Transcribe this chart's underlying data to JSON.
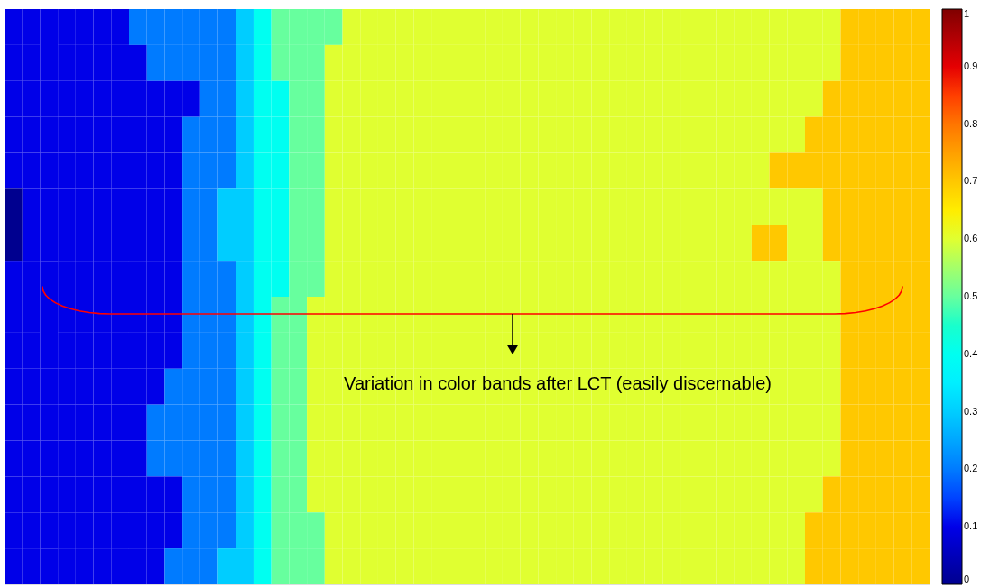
{
  "chart_data": {
    "type": "heatmap",
    "categories": [
      null,
      null,
      null,
      null,
      null,
      null,
      null,
      null,
      null,
      null,
      null,
      null,
      null,
      null,
      null,
      null,
      null,
      null,
      null,
      null,
      null,
      null,
      null,
      null,
      null,
      null,
      null,
      null,
      null,
      null,
      null,
      null,
      null,
      null,
      null,
      null,
      null,
      null,
      null,
      null,
      null,
      null,
      null,
      null,
      null,
      null,
      null,
      null,
      null,
      null,
      null,
      null
    ],
    "y_categories": [
      null,
      null,
      null,
      null,
      null,
      null,
      null,
      null,
      null,
      null,
      null,
      null,
      null,
      null,
      null,
      null
    ],
    "cells": [
      [
        0.1,
        0.1,
        0.1,
        0.1,
        0.1,
        0.1,
        0.1,
        0.2,
        0.2,
        0.2,
        0.2,
        0.2,
        0.2,
        0.3,
        0.4,
        0.5,
        0.5,
        0.5,
        0.5,
        0.6,
        0.6,
        0.6,
        0.6,
        0.6,
        0.6,
        0.6,
        0.6,
        0.6,
        0.6,
        0.6,
        0.6,
        0.6,
        0.6,
        0.6,
        0.6,
        0.6,
        0.6,
        0.6,
        0.6,
        0.6,
        0.6,
        0.6,
        0.6,
        0.6,
        0.6,
        0.6,
        0.6,
        0.7,
        0.7,
        0.7,
        0.7,
        0.7
      ],
      [
        0.1,
        0.1,
        0.1,
        0.1,
        0.1,
        0.1,
        0.1,
        0.1,
        0.2,
        0.2,
        0.2,
        0.2,
        0.2,
        0.3,
        0.4,
        0.5,
        0.5,
        0.5,
        0.6,
        0.6,
        0.6,
        0.6,
        0.6,
        0.6,
        0.6,
        0.6,
        0.6,
        0.6,
        0.6,
        0.6,
        0.6,
        0.6,
        0.6,
        0.6,
        0.6,
        0.6,
        0.6,
        0.6,
        0.6,
        0.6,
        0.6,
        0.6,
        0.6,
        0.6,
        0.6,
        0.6,
        0.6,
        0.7,
        0.7,
        0.7,
        0.7,
        0.7
      ],
      [
        0.1,
        0.1,
        0.1,
        0.1,
        0.1,
        0.1,
        0.1,
        0.1,
        0.1,
        0.1,
        0.1,
        0.2,
        0.2,
        0.3,
        0.4,
        0.4,
        0.5,
        0.5,
        0.6,
        0.6,
        0.6,
        0.6,
        0.6,
        0.6,
        0.6,
        0.6,
        0.6,
        0.6,
        0.6,
        0.6,
        0.6,
        0.6,
        0.6,
        0.6,
        0.6,
        0.6,
        0.6,
        0.6,
        0.6,
        0.6,
        0.6,
        0.6,
        0.6,
        0.6,
        0.6,
        0.6,
        0.7,
        0.7,
        0.7,
        0.7,
        0.7,
        0.7
      ],
      [
        0.1,
        0.1,
        0.1,
        0.1,
        0.1,
        0.1,
        0.1,
        0.1,
        0.1,
        0.1,
        0.2,
        0.2,
        0.2,
        0.3,
        0.4,
        0.4,
        0.5,
        0.5,
        0.6,
        0.6,
        0.6,
        0.6,
        0.6,
        0.6,
        0.6,
        0.6,
        0.6,
        0.6,
        0.6,
        0.6,
        0.6,
        0.6,
        0.6,
        0.6,
        0.6,
        0.6,
        0.6,
        0.6,
        0.6,
        0.6,
        0.6,
        0.6,
        0.6,
        0.6,
        0.6,
        0.7,
        0.7,
        0.7,
        0.7,
        0.7,
        0.7,
        0.7
      ],
      [
        0.1,
        0.1,
        0.1,
        0.1,
        0.1,
        0.1,
        0.1,
        0.1,
        0.1,
        0.1,
        0.2,
        0.2,
        0.2,
        0.3,
        0.4,
        0.4,
        0.5,
        0.5,
        0.6,
        0.6,
        0.6,
        0.6,
        0.6,
        0.6,
        0.6,
        0.6,
        0.6,
        0.6,
        0.6,
        0.6,
        0.6,
        0.6,
        0.6,
        0.6,
        0.6,
        0.6,
        0.6,
        0.6,
        0.6,
        0.6,
        0.6,
        0.6,
        0.6,
        0.7,
        0.7,
        0.7,
        0.7,
        0.7,
        0.7,
        0.7,
        0.7,
        0.7
      ],
      [
        0,
        0.1,
        0.1,
        0.1,
        0.1,
        0.1,
        0.1,
        0.1,
        0.1,
        0.1,
        0.2,
        0.2,
        0.3,
        0.3,
        0.4,
        0.4,
        0.5,
        0.5,
        0.6,
        0.6,
        0.6,
        0.6,
        0.6,
        0.6,
        0.6,
        0.6,
        0.6,
        0.6,
        0.6,
        0.6,
        0.6,
        0.6,
        0.6,
        0.6,
        0.6,
        0.6,
        0.6,
        0.6,
        0.6,
        0.6,
        0.6,
        0.6,
        0.6,
        0.6,
        0.6,
        0.6,
        0.7,
        0.7,
        0.7,
        0.7,
        0.7,
        0.7
      ],
      [
        0,
        0.1,
        0.1,
        0.1,
        0.1,
        0.1,
        0.1,
        0.1,
        0.1,
        0.1,
        0.2,
        0.2,
        0.3,
        0.3,
        0.4,
        0.4,
        0.5,
        0.5,
        0.6,
        0.6,
        0.6,
        0.6,
        0.6,
        0.6,
        0.6,
        0.6,
        0.6,
        0.6,
        0.6,
        0.6,
        0.6,
        0.6,
        0.6,
        0.6,
        0.6,
        0.6,
        0.6,
        0.6,
        0.6,
        0.6,
        0.6,
        0.6,
        0.7,
        0.7,
        0.6,
        0.6,
        0.7,
        0.7,
        0.7,
        0.7,
        0.7,
        0.7
      ],
      [
        0.1,
        0.1,
        0.1,
        0.1,
        0.1,
        0.1,
        0.1,
        0.1,
        0.1,
        0.1,
        0.2,
        0.2,
        0.2,
        0.3,
        0.4,
        0.4,
        0.5,
        0.5,
        0.6,
        0.6,
        0.6,
        0.6,
        0.6,
        0.6,
        0.6,
        0.6,
        0.6,
        0.6,
        0.6,
        0.6,
        0.6,
        0.6,
        0.6,
        0.6,
        0.6,
        0.6,
        0.6,
        0.6,
        0.6,
        0.6,
        0.6,
        0.6,
        0.6,
        0.6,
        0.6,
        0.6,
        0.6,
        0.7,
        0.7,
        0.7,
        0.7,
        0.7
      ],
      [
        0.1,
        0.1,
        0.1,
        0.1,
        0.1,
        0.1,
        0.1,
        0.1,
        0.1,
        0.1,
        0.2,
        0.2,
        0.2,
        0.3,
        0.4,
        0.5,
        0.5,
        0.6,
        0.6,
        0.6,
        0.6,
        0.6,
        0.6,
        0.6,
        0.6,
        0.6,
        0.6,
        0.6,
        0.6,
        0.6,
        0.6,
        0.6,
        0.6,
        0.6,
        0.6,
        0.6,
        0.6,
        0.6,
        0.6,
        0.6,
        0.6,
        0.6,
        0.6,
        0.6,
        0.6,
        0.6,
        0.6,
        0.7,
        0.7,
        0.7,
        0.7,
        0.7
      ],
      [
        0.1,
        0.1,
        0.1,
        0.1,
        0.1,
        0.1,
        0.1,
        0.1,
        0.1,
        0.1,
        0.2,
        0.2,
        0.2,
        0.3,
        0.4,
        0.5,
        0.5,
        0.6,
        0.6,
        0.6,
        0.6,
        0.6,
        0.6,
        0.6,
        0.6,
        0.6,
        0.6,
        0.6,
        0.6,
        0.6,
        0.6,
        0.6,
        0.6,
        0.6,
        0.6,
        0.6,
        0.6,
        0.6,
        0.6,
        0.6,
        0.6,
        0.6,
        0.6,
        0.6,
        0.6,
        0.6,
        0.6,
        0.7,
        0.7,
        0.7,
        0.7,
        0.7
      ],
      [
        0.1,
        0.1,
        0.1,
        0.1,
        0.1,
        0.1,
        0.1,
        0.1,
        0.1,
        0.2,
        0.2,
        0.2,
        0.2,
        0.3,
        0.4,
        0.5,
        0.5,
        0.6,
        0.6,
        0.6,
        0.6,
        0.6,
        0.6,
        0.6,
        0.6,
        0.6,
        0.6,
        0.6,
        0.6,
        0.6,
        0.6,
        0.6,
        0.6,
        0.6,
        0.6,
        0.6,
        0.6,
        0.6,
        0.6,
        0.6,
        0.6,
        0.6,
        0.6,
        0.6,
        0.6,
        0.6,
        0.6,
        0.7,
        0.7,
        0.7,
        0.7,
        0.7
      ],
      [
        0.1,
        0.1,
        0.1,
        0.1,
        0.1,
        0.1,
        0.1,
        0.1,
        0.2,
        0.2,
        0.2,
        0.2,
        0.2,
        0.3,
        0.4,
        0.5,
        0.5,
        0.6,
        0.6,
        0.6,
        0.6,
        0.6,
        0.6,
        0.6,
        0.6,
        0.6,
        0.6,
        0.6,
        0.6,
        0.6,
        0.6,
        0.6,
        0.6,
        0.6,
        0.6,
        0.6,
        0.6,
        0.6,
        0.6,
        0.6,
        0.6,
        0.6,
        0.6,
        0.6,
        0.6,
        0.6,
        0.6,
        0.7,
        0.7,
        0.7,
        0.7,
        0.7
      ],
      [
        0.1,
        0.1,
        0.1,
        0.1,
        0.1,
        0.1,
        0.1,
        0.1,
        0.2,
        0.2,
        0.2,
        0.2,
        0.2,
        0.3,
        0.4,
        0.5,
        0.5,
        0.6,
        0.6,
        0.6,
        0.6,
        0.6,
        0.6,
        0.6,
        0.6,
        0.6,
        0.6,
        0.6,
        0.6,
        0.6,
        0.6,
        0.6,
        0.6,
        0.6,
        0.6,
        0.6,
        0.6,
        0.6,
        0.6,
        0.6,
        0.6,
        0.6,
        0.6,
        0.6,
        0.6,
        0.6,
        0.6,
        0.7,
        0.7,
        0.7,
        0.7,
        0.7
      ],
      [
        0.1,
        0.1,
        0.1,
        0.1,
        0.1,
        0.1,
        0.1,
        0.1,
        0.1,
        0.1,
        0.2,
        0.2,
        0.2,
        0.3,
        0.4,
        0.5,
        0.5,
        0.6,
        0.6,
        0.6,
        0.6,
        0.6,
        0.6,
        0.6,
        0.6,
        0.6,
        0.6,
        0.6,
        0.6,
        0.6,
        0.6,
        0.6,
        0.6,
        0.6,
        0.6,
        0.6,
        0.6,
        0.6,
        0.6,
        0.6,
        0.6,
        0.6,
        0.6,
        0.6,
        0.6,
        0.6,
        0.7,
        0.7,
        0.7,
        0.7,
        0.7,
        0.7
      ],
      [
        0.1,
        0.1,
        0.1,
        0.1,
        0.1,
        0.1,
        0.1,
        0.1,
        0.1,
        0.1,
        0.2,
        0.2,
        0.2,
        0.3,
        0.4,
        0.5,
        0.5,
        0.5,
        0.6,
        0.6,
        0.6,
        0.6,
        0.6,
        0.6,
        0.6,
        0.6,
        0.6,
        0.6,
        0.6,
        0.6,
        0.6,
        0.6,
        0.6,
        0.6,
        0.6,
        0.6,
        0.6,
        0.6,
        0.6,
        0.6,
        0.6,
        0.6,
        0.6,
        0.6,
        0.6,
        0.7,
        0.7,
        0.7,
        0.7,
        0.7,
        0.7,
        0.7
      ],
      [
        0.1,
        0.1,
        0.1,
        0.1,
        0.1,
        0.1,
        0.1,
        0.1,
        0.1,
        0.2,
        0.2,
        0.2,
        0.3,
        0.3,
        0.4,
        0.5,
        0.5,
        0.5,
        0.6,
        0.6,
        0.6,
        0.6,
        0.6,
        0.6,
        0.6,
        0.6,
        0.6,
        0.6,
        0.6,
        0.6,
        0.6,
        0.6,
        0.6,
        0.6,
        0.6,
        0.6,
        0.6,
        0.6,
        0.6,
        0.6,
        0.6,
        0.6,
        0.6,
        0.6,
        0.6,
        0.7,
        0.7,
        0.7,
        0.7,
        0.7,
        0.7,
        0.7
      ]
    ],
    "clim": [
      0,
      1
    ],
    "cticks": [
      0,
      0.1,
      0.2,
      0.3,
      0.4,
      0.5,
      0.6,
      0.7,
      0.8,
      0.9,
      1
    ],
    "annotations": [
      "Variation in color bands after LCT (easily discernable)"
    ]
  }
}
